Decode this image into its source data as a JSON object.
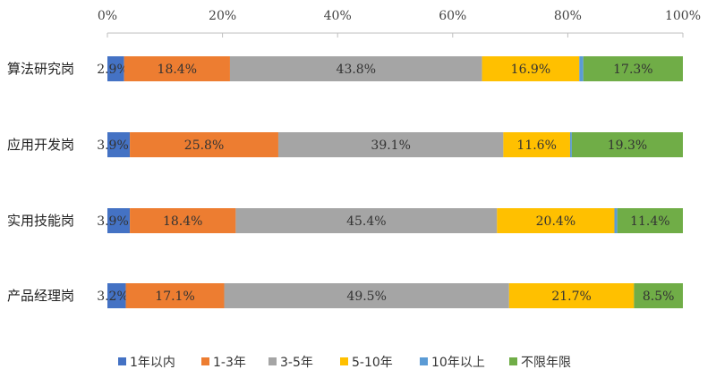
{
  "chart_data": {
    "type": "bar",
    "orientation": "horizontal",
    "stacked": "percent",
    "title": "",
    "xlabel": "",
    "ylabel": "",
    "xlim": [
      0,
      100
    ],
    "x_ticks": [
      "0%",
      "20%",
      "40%",
      "60%",
      "80%",
      "100%"
    ],
    "x_tick_values": [
      0,
      20,
      40,
      60,
      80,
      100
    ],
    "grid": false,
    "legend_position": "bottom",
    "categories": [
      "算法研究岗",
      "应用开发岗",
      "实用技能岗",
      "产品经理岗"
    ],
    "series": [
      {
        "name": "1年以内",
        "color": "#4472C4",
        "values": [
          2.9,
          3.9,
          3.9,
          3.2
        ],
        "labels": [
          "2.9%",
          "3.9%",
          "3.9%",
          "3.2%"
        ]
      },
      {
        "name": "1-3年",
        "color": "#ED7D31",
        "values": [
          18.4,
          25.8,
          18.4,
          17.1
        ],
        "labels": [
          "18.4%",
          "25.8%",
          "18.4%",
          "17.1%"
        ]
      },
      {
        "name": "3-5年",
        "color": "#A5A5A5",
        "values": [
          43.8,
          39.1,
          45.4,
          49.5
        ],
        "labels": [
          "43.8%",
          "39.1%",
          "45.4%",
          "49.5%"
        ]
      },
      {
        "name": "5-10年",
        "color": "#FFC000",
        "values": [
          16.9,
          11.6,
          20.4,
          21.7
        ],
        "labels": [
          "16.9%",
          "11.6%",
          "20.4%",
          "21.7%"
        ]
      },
      {
        "name": "10年以上",
        "color": "#5B9BD5",
        "values": [
          0.7,
          0.3,
          0.5,
          0.0
        ],
        "labels": [
          "",
          "",
          "",
          ""
        ]
      },
      {
        "name": "不限年限",
        "color": "#70AD47",
        "values": [
          17.3,
          19.3,
          11.4,
          8.5
        ],
        "labels": [
          "17.3%",
          "19.3%",
          "11.4%",
          "8.5%"
        ]
      }
    ]
  }
}
